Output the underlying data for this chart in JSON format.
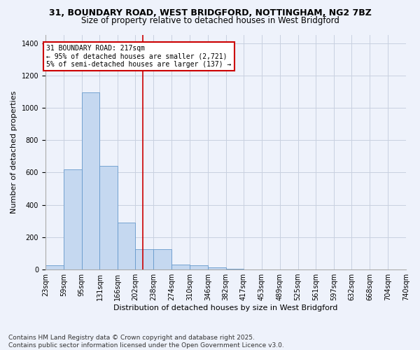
{
  "title": "31, BOUNDARY ROAD, WEST BRIDGFORD, NOTTINGHAM, NG2 7BZ",
  "subtitle": "Size of property relative to detached houses in West Bridgford",
  "xlabel": "Distribution of detached houses by size in West Bridgford",
  "ylabel": "Number of detached properties",
  "bar_color": "#c5d8f0",
  "bar_edge_color": "#6699cc",
  "bg_color": "#eef2fb",
  "grid_color": "#c8d0e0",
  "annotation_text": "31 BOUNDARY ROAD: 217sqm\n← 95% of detached houses are smaller (2,721)\n5% of semi-detached houses are larger (137) →",
  "annotation_box_color": "#ffffff",
  "annotation_box_edge": "#cc0000",
  "property_line_color": "#cc0000",
  "property_line_x": 217,
  "bin_edges": [
    23,
    59,
    95,
    131,
    166,
    202,
    238,
    274,
    310,
    346,
    382,
    417,
    453,
    489,
    525,
    561,
    597,
    632,
    668,
    704,
    740
  ],
  "bin_labels": [
    "23sqm",
    "59sqm",
    "95sqm",
    "131sqm",
    "166sqm",
    "202sqm",
    "238sqm",
    "274sqm",
    "310sqm",
    "346sqm",
    "382sqm",
    "417sqm",
    "453sqm",
    "489sqm",
    "525sqm",
    "561sqm",
    "597sqm",
    "632sqm",
    "668sqm",
    "704sqm",
    "740sqm"
  ],
  "bar_heights": [
    25,
    620,
    1095,
    640,
    290,
    125,
    125,
    30,
    25,
    15,
    5,
    0,
    0,
    0,
    0,
    0,
    0,
    0,
    0,
    0
  ],
  "ylim": [
    0,
    1450
  ],
  "yticks": [
    0,
    200,
    400,
    600,
    800,
    1000,
    1200,
    1400
  ],
  "footnote": "Contains HM Land Registry data © Crown copyright and database right 2025.\nContains public sector information licensed under the Open Government Licence v3.0.",
  "title_fontsize": 9,
  "subtitle_fontsize": 8.5,
  "axis_label_fontsize": 8,
  "tick_fontsize": 7,
  "annotation_fontsize": 7,
  "footnote_fontsize": 6.5
}
